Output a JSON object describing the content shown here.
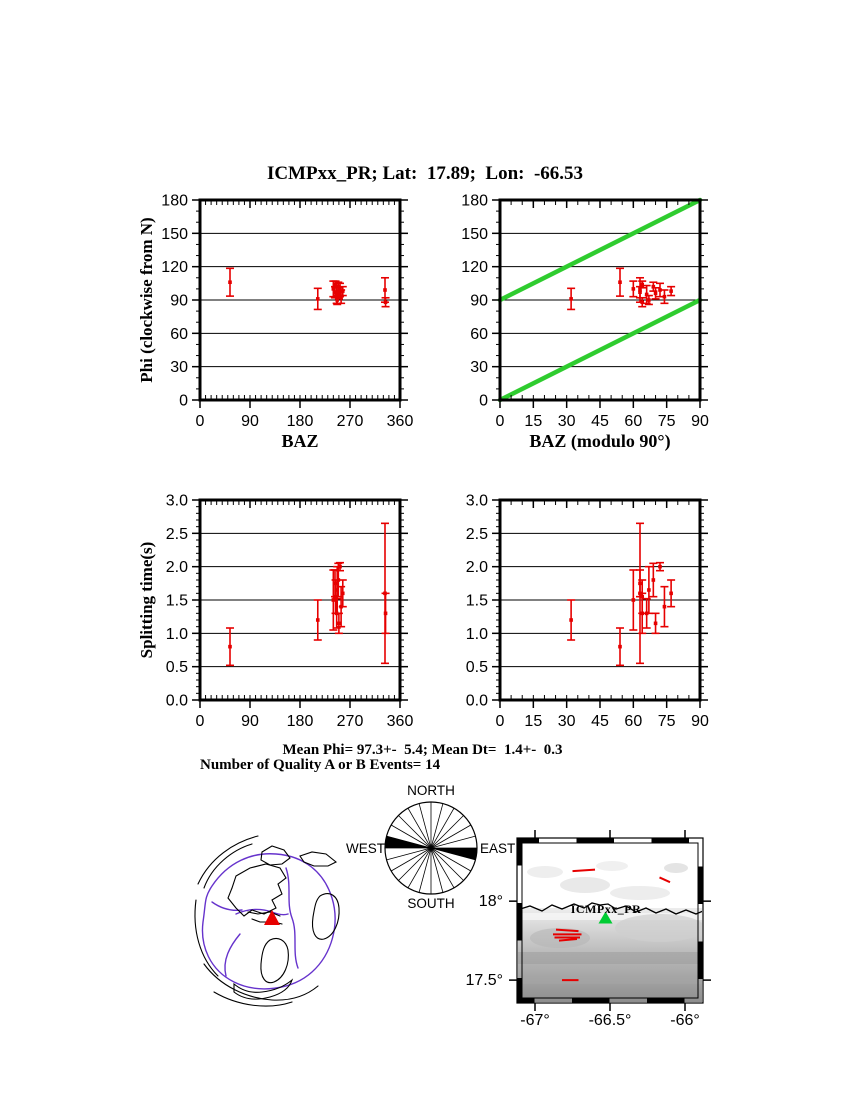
{
  "title": "ICMPxx_PR; Lat:  17.89;  Lon:  -66.53",
  "colors": {
    "red": "#e60000",
    "green_line": "#2fcc2f",
    "station_marker": "#00cc33",
    "plate_boundary": "#6633cc",
    "frame": "#000000"
  },
  "stats": {
    "line1": "Mean Phi= 97.3+-  5.4; Mean Dt=  1.4+-  0.3",
    "line2": "Number of Quality A or B Events= 14"
  },
  "chart_data": {
    "type": "scatter",
    "station": "ICMPxx_PR",
    "station_lat": 17.89,
    "station_lon": -66.53,
    "n_quality_ab_events": 14,
    "mean_phi": 97.3,
    "mean_phi_err": 5.4,
    "mean_dt": 1.4,
    "mean_dt_err": 0.3,
    "events": [
      {
        "baz": 54,
        "phi": 106,
        "phi_err": 12.5,
        "dt": 0.8,
        "dt_err": 0.28
      },
      {
        "baz": 212,
        "phi": 91,
        "phi_err": 9.5,
        "dt": 1.2,
        "dt_err": 0.3
      },
      {
        "baz": 240,
        "phi": 100,
        "phi_err": 7,
        "dt": 1.5,
        "dt_err": 0.45
      },
      {
        "baz": 243,
        "phi": 97,
        "phi_err": 5,
        "dt": 1.75,
        "dt_err": 0.2
      },
      {
        "baz": 244,
        "phi": 104,
        "phi_err": 3,
        "dt": 1.55,
        "dt_err": 0.25
      },
      {
        "baz": 246,
        "phi": 95,
        "phi_err": 8,
        "dt": 1.3,
        "dt_err": 0.22
      },
      {
        "baz": 247,
        "phi": 90,
        "phi_err": 4,
        "dt": 1.65,
        "dt_err": 0.35
      },
      {
        "baz": 249,
        "phi": 102,
        "phi_err": 4,
        "dt": 1.8,
        "dt_err": 0.25
      },
      {
        "baz": 250,
        "phi": 96,
        "phi_err": 5,
        "dt": 1.15,
        "dt_err": 0.15
      },
      {
        "baz": 252,
        "phi": 99,
        "phi_err": 6,
        "dt": 2.0,
        "dt_err": 0.06
      },
      {
        "baz": 254,
        "phi": 93,
        "phi_err": 6,
        "dt": 1.4,
        "dt_err": 0.3
      },
      {
        "baz": 257,
        "phi": 98,
        "phi_err": 4,
        "dt": 1.6,
        "dt_err": 0.2
      },
      {
        "baz": 333,
        "phi": 99,
        "phi_err": 11,
        "dt": 1.6,
        "dt_err": 1.05
      },
      {
        "baz": 334,
        "phi": 88,
        "phi_err": 4,
        "dt": 1.3,
        "dt_err": 0.3
      }
    ],
    "panels": [
      {
        "id": "phi_baz",
        "xlabel": "BAZ",
        "ylabel": "Phi (clockwise from N)",
        "xlim": [
          0,
          360
        ],
        "ylim": [
          0,
          180
        ],
        "xticks": [
          0,
          90,
          180,
          270,
          360
        ],
        "yticks": [
          0,
          30,
          60,
          90,
          120,
          150,
          180
        ],
        "xminor": 10,
        "yminor": 10,
        "x": "baz",
        "y": "phi",
        "yerr": "phi_err",
        "xtickfmt": "int",
        "ytickfmt": "int"
      },
      {
        "id": "phi_mod",
        "xlabel": "BAZ (modulo 90°)",
        "ylabel": "",
        "xlim": [
          0,
          90
        ],
        "ylim": [
          0,
          180
        ],
        "xticks": [
          0,
          15,
          30,
          45,
          60,
          75,
          90
        ],
        "yticks": [
          0,
          30,
          60,
          90,
          120,
          150,
          180
        ],
        "xminor": 5,
        "yminor": 10,
        "x": "baz_mod90",
        "y": "phi",
        "yerr": "phi_err",
        "xtickfmt": "int",
        "ytickfmt": "int",
        "reference_lines": [
          {
            "x1": 0,
            "y1": 0,
            "x2": 90,
            "y2": 90
          },
          {
            "x1": 0,
            "y1": 90,
            "x2": 90,
            "y2": 180
          }
        ]
      },
      {
        "id": "dt_baz",
        "xlabel": "",
        "ylabel": "Splitting time(s)",
        "xlim": [
          0,
          360
        ],
        "ylim": [
          0,
          3
        ],
        "xticks": [
          0,
          90,
          180,
          270,
          360
        ],
        "yticks": [
          0,
          0.5,
          1,
          1.5,
          2,
          2.5,
          3
        ],
        "xminor": 10,
        "yminor": 0.1,
        "x": "baz",
        "y": "dt",
        "yerr": "dt_err",
        "xtickfmt": "int",
        "ytickfmt": "1f"
      },
      {
        "id": "dt_mod",
        "xlabel": "",
        "ylabel": "",
        "xlim": [
          0,
          90
        ],
        "ylim": [
          0,
          3
        ],
        "xticks": [
          0,
          15,
          30,
          45,
          60,
          75,
          90
        ],
        "yticks": [
          0,
          0.5,
          1,
          1.5,
          2,
          2.5,
          3
        ],
        "xminor": 5,
        "yminor": 0.1,
        "x": "baz_mod90",
        "y": "dt",
        "yerr": "dt_err",
        "xtickfmt": "int",
        "ytickfmt": "1f"
      }
    ]
  },
  "rose": {
    "labels": {
      "north": "NORTH",
      "east": "EAST",
      "south": "SOUTH",
      "west": "WEST"
    },
    "spoke_step_deg": 15,
    "wedges": [
      {
        "azimuth_deg": 97.5,
        "width_deg": 15
      },
      {
        "azimuth_deg": 277.5,
        "width_deg": 15
      }
    ]
  },
  "map": {
    "station_label": "ICMPxx_PR",
    "station_lon": -66.53,
    "station_lat": 17.89,
    "bounds": {
      "lon_min": -67.12,
      "lon_max": -65.88,
      "lat_min": 17.355,
      "lat_max": 18.4
    },
    "lon_ticks": [
      {
        "value": -67,
        "label": "-67°"
      },
      {
        "value": -66.5,
        "label": "-66.5°"
      },
      {
        "value": -66,
        "label": "-66°"
      }
    ],
    "lat_ticks": [
      {
        "value": 18,
        "label": "18°"
      },
      {
        "value": 17.5,
        "label": "17.5°"
      }
    ],
    "splitting_bars": [
      {
        "lon1": -66.75,
        "lat1": 18.19,
        "lon2": -66.6,
        "lat2": 18.2
      },
      {
        "lon1": -66.17,
        "lat1": 18.15,
        "lon2": -66.1,
        "lat2": 18.12
      },
      {
        "lon1": -66.86,
        "lat1": 17.82,
        "lon2": -66.71,
        "lat2": 17.81
      },
      {
        "lon1": -66.88,
        "lat1": 17.79,
        "lon2": -66.69,
        "lat2": 17.79
      },
      {
        "lon1": -66.87,
        "lat1": 17.77,
        "lon2": -66.7,
        "lat2": 17.77
      },
      {
        "lon1": -66.84,
        "lat1": 17.75,
        "lon2": -66.72,
        "lat2": 17.76
      },
      {
        "lon1": -66.82,
        "lat1": 17.5,
        "lon2": -66.71,
        "lat2": 17.5
      }
    ]
  }
}
